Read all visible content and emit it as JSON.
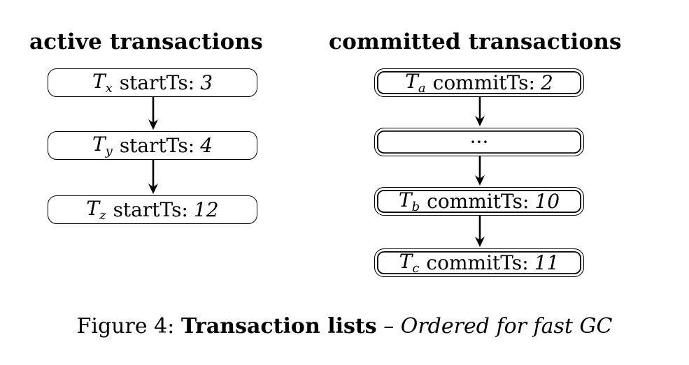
{
  "active": {
    "heading": "active transactions",
    "items": [
      {
        "var": "T",
        "sub": "x",
        "label": "startTs:",
        "value": "3"
      },
      {
        "var": "T",
        "sub": "y",
        "label": "startTs:",
        "value": "4"
      },
      {
        "var": "T",
        "sub": "z",
        "label": "startTs:",
        "value": "12"
      }
    ]
  },
  "committed": {
    "heading": "committed transactions",
    "items": [
      {
        "var": "T",
        "sub": "a",
        "label": "commitTs:",
        "value": "2"
      },
      {
        "text": "···"
      },
      {
        "var": "T",
        "sub": "b",
        "label": "commitTs:",
        "value": "10"
      },
      {
        "var": "T",
        "sub": "c",
        "label": "commitTs:",
        "value": "11"
      }
    ]
  },
  "caption": {
    "prefix": "Figure 4:",
    "title": "Transaction lists",
    "dash": "–",
    "subtitle": "Ordered for fast GC"
  }
}
